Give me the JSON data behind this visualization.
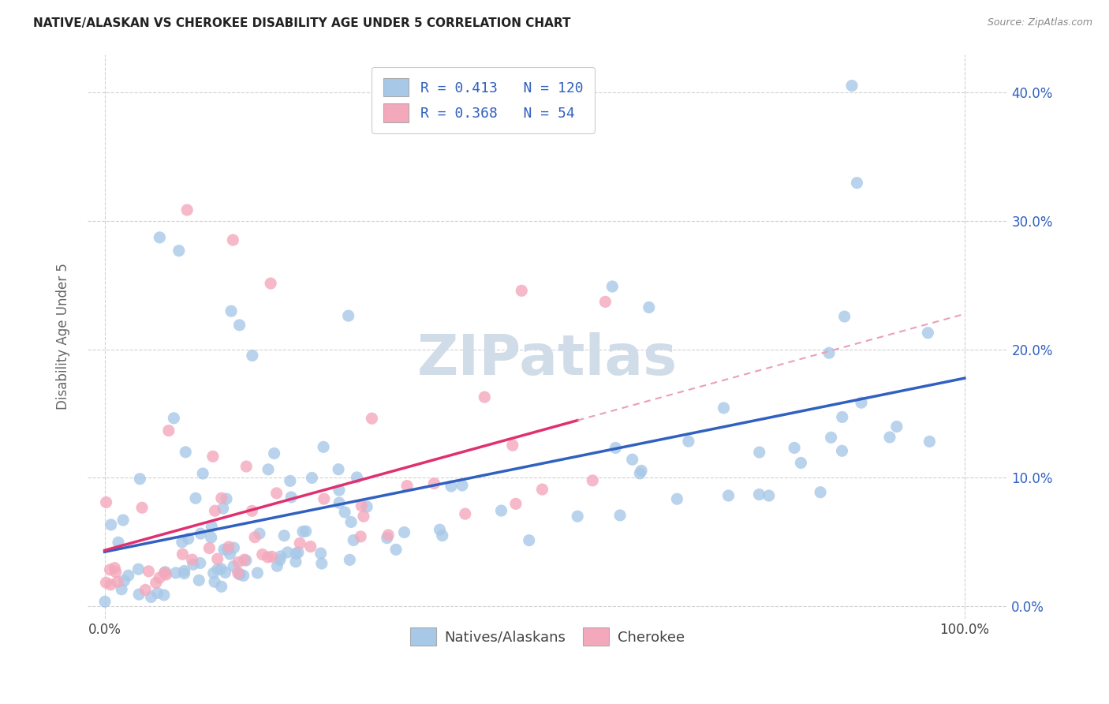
{
  "title": "NATIVE/ALASKAN VS CHEROKEE DISABILITY AGE UNDER 5 CORRELATION CHART",
  "source": "Source: ZipAtlas.com",
  "ylabel": "Disability Age Under 5",
  "yticks_values": [
    0,
    10,
    20,
    30,
    40
  ],
  "R_blue": 0.413,
  "N_blue": 120,
  "R_pink": 0.368,
  "N_pink": 54,
  "blue_color": "#a8c8e8",
  "pink_color": "#f4a8bc",
  "blue_line_color": "#3060c0",
  "pink_line_color": "#e03070",
  "pink_dash_color": "#e8a0b8",
  "watermark_color": "#d0dce8",
  "legend_label_blue": "Natives/Alaskans",
  "legend_label_pink": "Cherokee",
  "xlim": [
    -2,
    105
  ],
  "ylim": [
    -1,
    43
  ],
  "grid_color": "#cccccc",
  "background_color": "#ffffff",
  "fig_background": "#ffffff",
  "title_color": "#222222",
  "source_color": "#888888",
  "axis_label_color": "#555555",
  "tick_color": "#3060c0",
  "ylabel_color": "#666666"
}
